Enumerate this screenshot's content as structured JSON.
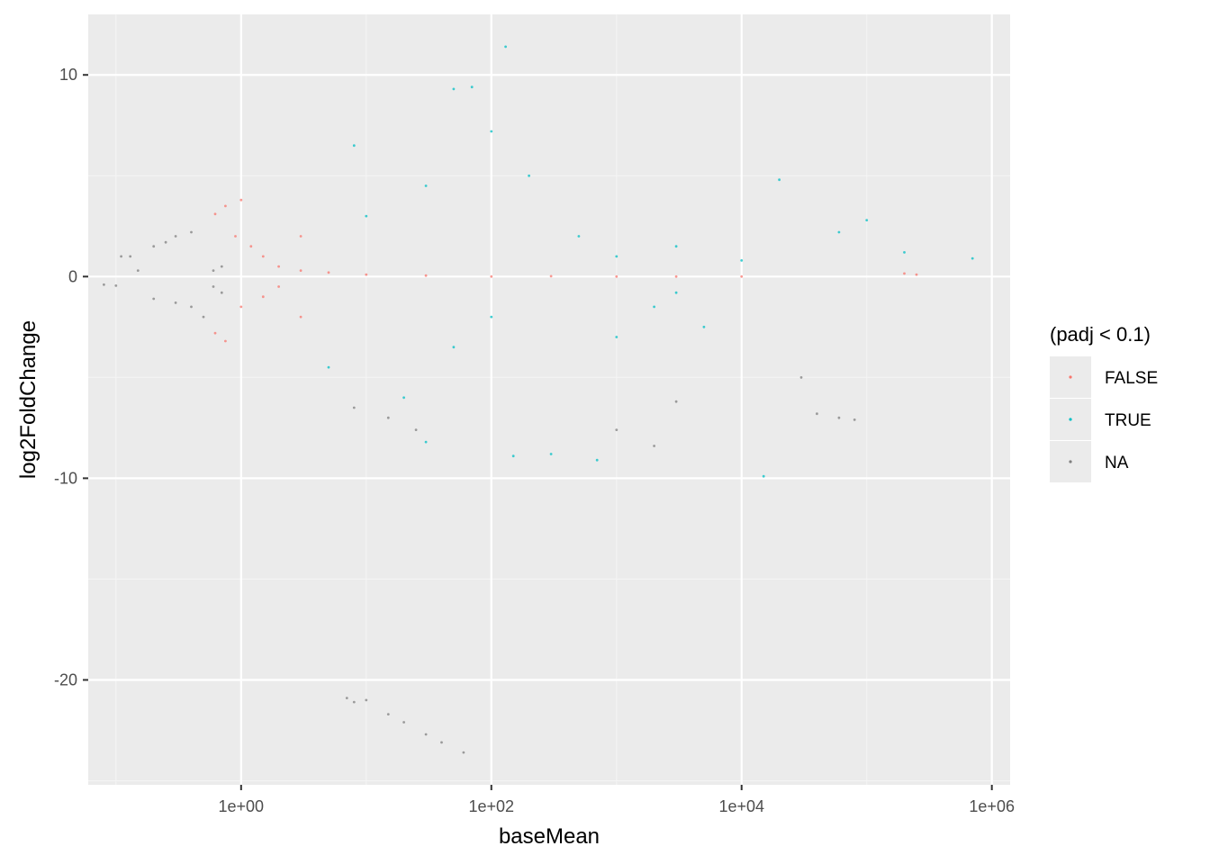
{
  "chart_data": {
    "type": "scatter",
    "title": "",
    "xlabel": "baseMean",
    "ylabel": "log2FoldChange",
    "x_scale": "log10",
    "x_range": [
      0.06,
      1400000
    ],
    "y_range": [
      -25.2,
      13
    ],
    "x_ticks": [
      {
        "value": 1,
        "label": "1e+00"
      },
      {
        "value": 100,
        "label": "1e+02"
      },
      {
        "value": 10000,
        "label": "1e+04"
      },
      {
        "value": 1000000,
        "label": "1e+06"
      }
    ],
    "y_ticks": [
      {
        "value": 10,
        "label": "10"
      },
      {
        "value": 0,
        "label": "0"
      },
      {
        "value": -10,
        "label": "-10"
      },
      {
        "value": -20,
        "label": "-20"
      }
    ],
    "grid": true,
    "panel_background": "#ebebeb",
    "legend": {
      "title": "(padj < 0.1)",
      "position": "right",
      "entries": [
        {
          "label": "FALSE",
          "color": "#f8766d"
        },
        {
          "label": "TRUE",
          "color": "#00bfc4"
        },
        {
          "label": "NA",
          "color": "#7f7f7f"
        }
      ]
    },
    "series": [
      {
        "name": "FALSE",
        "color": "#f8766d",
        "points": [
          [
            0.62,
            3.1
          ],
          [
            0.62,
            -2.8
          ],
          [
            0.75,
            3.5
          ],
          [
            0.75,
            -3.2
          ],
          [
            1.0,
            3.8
          ],
          [
            0.9,
            2.0
          ],
          [
            1.2,
            1.5
          ],
          [
            1.5,
            1.0
          ],
          [
            2.0,
            0.5
          ],
          [
            3.0,
            0.3
          ],
          [
            1.0,
            -1.5
          ],
          [
            1.5,
            -1.0
          ],
          [
            2.0,
            -0.5
          ],
          [
            5.0,
            0.2
          ],
          [
            10,
            0.1
          ],
          [
            30,
            0.05
          ],
          [
            100,
            0.0
          ],
          [
            300,
            0.02
          ],
          [
            1000,
            0.0
          ],
          [
            3000,
            0.0
          ],
          [
            10000,
            0.0
          ],
          [
            200000,
            0.15
          ],
          [
            250000,
            0.1
          ],
          [
            3.0,
            2.0
          ],
          [
            3.0,
            -2.0
          ]
        ]
      },
      {
        "name": "TRUE",
        "color": "#00bfc4",
        "points": [
          [
            8,
            6.5
          ],
          [
            10,
            3.0
          ],
          [
            30,
            4.5
          ],
          [
            50,
            9.3
          ],
          [
            70,
            9.4
          ],
          [
            100,
            7.2
          ],
          [
            130,
            11.4
          ],
          [
            200,
            5.0
          ],
          [
            500,
            2.0
          ],
          [
            1000,
            1.0
          ],
          [
            3000,
            1.5
          ],
          [
            10000,
            0.8
          ],
          [
            20000,
            4.8
          ],
          [
            60000,
            2.2
          ],
          [
            100000,
            2.8
          ],
          [
            200000,
            1.2
          ],
          [
            700000,
            0.9
          ],
          [
            50,
            -3.5
          ],
          [
            100,
            -2.0
          ],
          [
            300,
            -8.8
          ],
          [
            700,
            -9.1
          ],
          [
            1000,
            -3.0
          ],
          [
            2000,
            -1.5
          ],
          [
            5000,
            -2.5
          ],
          [
            15000,
            -9.9
          ],
          [
            30,
            -8.2
          ],
          [
            5,
            -4.5
          ],
          [
            20,
            -6.0
          ],
          [
            150,
            -8.9
          ],
          [
            3000,
            -0.8
          ]
        ]
      },
      {
        "name": "NA",
        "color": "#7f7f7f",
        "points": [
          [
            0.08,
            -0.4
          ],
          [
            0.1,
            -0.45
          ],
          [
            0.11,
            1.0
          ],
          [
            0.13,
            1.0
          ],
          [
            0.15,
            0.3
          ],
          [
            0.2,
            1.5
          ],
          [
            0.25,
            1.7
          ],
          [
            0.3,
            2.0
          ],
          [
            0.4,
            2.2
          ],
          [
            0.2,
            -1.1
          ],
          [
            0.3,
            -1.3
          ],
          [
            0.4,
            -1.5
          ],
          [
            0.5,
            -2.0
          ],
          [
            0.6,
            0.3
          ],
          [
            0.7,
            0.5
          ],
          [
            0.6,
            -0.5
          ],
          [
            0.7,
            -0.8
          ],
          [
            7,
            -20.9
          ],
          [
            8,
            -21.1
          ],
          [
            10,
            -21.0
          ],
          [
            15,
            -21.7
          ],
          [
            20,
            -22.1
          ],
          [
            30,
            -22.7
          ],
          [
            40,
            -23.1
          ],
          [
            60,
            -23.6
          ],
          [
            8,
            -6.5
          ],
          [
            15,
            -7.0
          ],
          [
            25,
            -7.6
          ],
          [
            60000,
            -7.0
          ],
          [
            80000,
            -7.1
          ],
          [
            40000,
            -6.8
          ],
          [
            30000,
            -5.0
          ],
          [
            2000,
            -8.4
          ],
          [
            1000,
            -7.6
          ],
          [
            3000,
            -6.2
          ]
        ]
      }
    ]
  }
}
